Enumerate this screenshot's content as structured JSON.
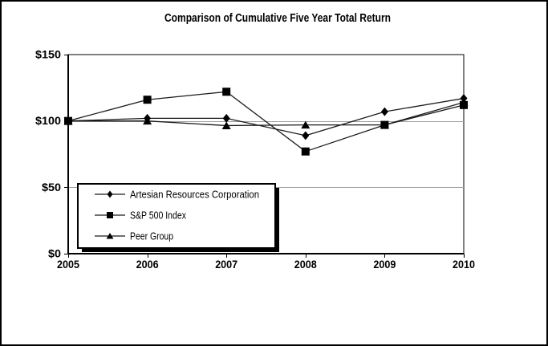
{
  "window": {
    "background": "#ffffff",
    "frame_border_color": "#000000"
  },
  "colors": {
    "series_line": "#1a1a1a",
    "marker_fill": "#000000",
    "gridline": "#a0a0a0",
    "axis": "#000000",
    "plot_background": "#ffffff",
    "legend_background": "#ffffff",
    "legend_border": "#000000",
    "legend_shadow": "#000000"
  },
  "chart_data": {
    "type": "line",
    "title": "Comparison of Cumulative Five Year Total Return",
    "xlabel": "",
    "ylabel": "",
    "x_labels": [
      "2005",
      "2006",
      "2007",
      "2008",
      "2009",
      "2010"
    ],
    "y_ticks": [
      0,
      50,
      100,
      150
    ],
    "y_tick_labels": [
      "$0",
      "$50",
      "$100",
      "$150"
    ],
    "ylim": [
      0,
      150
    ],
    "grid": "horizontal gray gridlines at $50 and $100",
    "legend_position": "inside-lower-left",
    "series": [
      {
        "name": "Artesian Resources Corporation",
        "marker": "diamond",
        "color": "#000000",
        "values": [
          100,
          102,
          102,
          89,
          107,
          117
        ]
      },
      {
        "name": "S&P 500 Index",
        "marker": "square",
        "color": "#000000",
        "values": [
          100,
          116,
          122,
          77,
          97,
          112
        ]
      },
      {
        "name": "Peer Group",
        "marker": "triangle",
        "color": "#000000",
        "values": [
          100,
          100,
          96.5,
          97,
          97,
          114
        ]
      }
    ]
  }
}
